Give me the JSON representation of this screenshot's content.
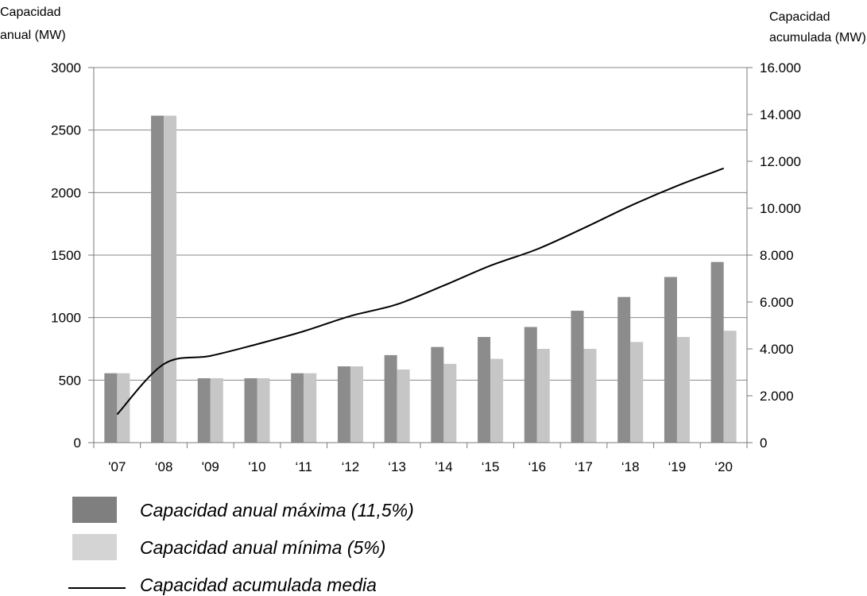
{
  "chart_data": {
    "type": "bar",
    "categories": [
      "'07",
      "'08",
      "'09",
      "'10",
      "'11",
      "'12",
      "'13",
      "'14",
      "'15",
      "'16",
      "'17",
      "'18",
      "'19",
      "'20"
    ],
    "series": [
      {
        "name": "Capacidad anual máxima (11,5%)",
        "kind": "bar",
        "axis": "left",
        "color": "#8c8c8c",
        "values": [
          555,
          2615,
          515,
          515,
          555,
          610,
          700,
          765,
          845,
          925,
          1055,
          1165,
          1325,
          1445
        ]
      },
      {
        "name": "Capacidad anual mínima (5%)",
        "kind": "bar",
        "axis": "left",
        "color": "#c6c6c6",
        "values": [
          555,
          2615,
          515,
          515,
          555,
          610,
          585,
          630,
          670,
          750,
          750,
          805,
          845,
          895
        ]
      },
      {
        "name": "Capacidad acumulada media",
        "kind": "line",
        "axis": "right",
        "color": "#000000",
        "values": [
          1200,
          3350,
          3700,
          4200,
          4750,
          5400,
          5900,
          6700,
          7550,
          8250,
          9150,
          10100,
          10950,
          11700
        ]
      }
    ],
    "left_axis": {
      "title": [
        "Capacidad",
        "anual (MW)"
      ],
      "min": 0,
      "max": 3000,
      "ticks": [
        "0",
        "500",
        "1000",
        "1500",
        "2000",
        "2500",
        "3000"
      ]
    },
    "right_axis": {
      "title": [
        "Capacidad",
        "acumulada (MW)"
      ],
      "min": 0,
      "max": 16000,
      "ticks": [
        "0",
        "2.000",
        "4.000",
        "6.000",
        "8.000",
        "10.000",
        "12.000",
        "14.000",
        "16.000"
      ]
    },
    "x_tick_labels": [
      "'07",
      "‘08",
      "'09",
      "'10",
      "‘11",
      "‘12",
      "‘13",
      "’14",
      "‘15",
      "‘16",
      "‘17",
      "‘18",
      "‘19",
      "‘20"
    ],
    "grid": true,
    "legend_position": "bottom-left"
  }
}
